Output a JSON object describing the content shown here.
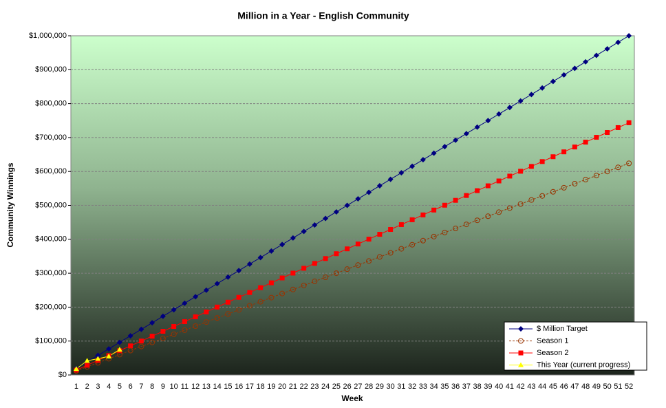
{
  "chart_data": {
    "type": "line",
    "title": "Million in a Year - English Community",
    "x_label": "Week",
    "y_label": "Community Winnings",
    "categories": [
      "1",
      "2",
      "3",
      "4",
      "5",
      "6",
      "7",
      "8",
      "9",
      "10",
      "11",
      "12",
      "13",
      "14",
      "15",
      "16",
      "17",
      "18",
      "19",
      "20",
      "21",
      "22",
      "23",
      "24",
      "25",
      "26",
      "27",
      "28",
      "29",
      "30",
      "31",
      "32",
      "33",
      "34",
      "35",
      "36",
      "37",
      "38",
      "39",
      "40",
      "41",
      "42",
      "43",
      "44",
      "45",
      "46",
      "47",
      "48",
      "49",
      "50",
      "51",
      "52"
    ],
    "ylim": [
      0,
      1000000
    ],
    "yticks": [
      {
        "value": 0,
        "label": "$0"
      },
      {
        "value": 100000,
        "label": "$100,000"
      },
      {
        "value": 200000,
        "label": "$200,000"
      },
      {
        "value": 300000,
        "label": "$300,000"
      },
      {
        "value": 400000,
        "label": "$400,000"
      },
      {
        "value": 500000,
        "label": "$500,000"
      },
      {
        "value": 600000,
        "label": "$600,000"
      },
      {
        "value": 700000,
        "label": "$700,000"
      },
      {
        "value": 800000,
        "label": "$800,000"
      },
      {
        "value": 900000,
        "label": "$900,000"
      },
      {
        "value": 1000000,
        "label": "$1,000,000"
      }
    ],
    "grid": true,
    "legend": "bottom-right",
    "series": [
      {
        "name": "$ Million Target",
        "color": "#000080",
        "marker": "diamond",
        "line_style": "solid",
        "values": [
          19231,
          38462,
          57692,
          76923,
          96154,
          115385,
          134615,
          153846,
          173077,
          192308,
          211538,
          230769,
          250000,
          269231,
          288462,
          307692,
          326923,
          346154,
          365385,
          384615,
          403846,
          423077,
          442308,
          461538,
          480769,
          500000,
          519231,
          538462,
          557692,
          576923,
          596154,
          615385,
          634615,
          653846,
          673077,
          692308,
          711538,
          730769,
          750000,
          769231,
          788462,
          807692,
          826923,
          846154,
          865385,
          884615,
          903846,
          923077,
          942308,
          961538,
          980769,
          1000000
        ]
      },
      {
        "name": "Season 1",
        "color": "#993300",
        "marker": "circle",
        "line_style": "dashed",
        "values": [
          12000,
          24000,
          36000,
          48000,
          60000,
          72000,
          84000,
          96000,
          108000,
          120000,
          132000,
          144000,
          156000,
          168000,
          180000,
          192000,
          204000,
          216000,
          228000,
          240000,
          252000,
          264000,
          276000,
          288000,
          300000,
          312000,
          324000,
          336000,
          348000,
          360000,
          372000,
          384000,
          396000,
          408000,
          420000,
          432000,
          444000,
          456000,
          468000,
          480000,
          492000,
          504000,
          516000,
          528000,
          540000,
          552000,
          564000,
          576000,
          588000,
          600000,
          612000,
          624000
        ]
      },
      {
        "name": "Season 2",
        "color": "#ff0000",
        "marker": "square",
        "line_style": "solid",
        "values": [
          14300,
          28600,
          42900,
          57200,
          71500,
          85800,
          100100,
          114400,
          128700,
          143000,
          157300,
          171600,
          185900,
          200200,
          214500,
          228800,
          243100,
          257400,
          271700,
          286000,
          300300,
          314600,
          328900,
          343200,
          357500,
          371800,
          386100,
          400400,
          414700,
          429000,
          443300,
          457600,
          471900,
          486200,
          500500,
          514800,
          529100,
          543400,
          557700,
          572000,
          586300,
          600600,
          614900,
          629200,
          643500,
          657800,
          672100,
          686400,
          700700,
          715000,
          729300,
          743600
        ]
      },
      {
        "name": "This Year (current progress)",
        "color": "#ffff00",
        "marker": "triangle",
        "line_style": "solid",
        "values": [
          18000,
          42000,
          48000,
          55000,
          75000,
          null,
          null,
          null,
          null,
          null,
          null,
          null,
          null,
          null,
          null,
          null,
          null,
          null,
          null,
          null,
          null,
          null,
          null,
          null,
          null,
          null,
          null,
          null,
          null,
          null,
          null,
          null,
          null,
          null,
          null,
          null,
          null,
          null,
          null,
          null,
          null,
          null,
          null,
          null,
          null,
          null,
          null,
          null,
          null,
          null,
          null,
          null
        ]
      }
    ]
  }
}
